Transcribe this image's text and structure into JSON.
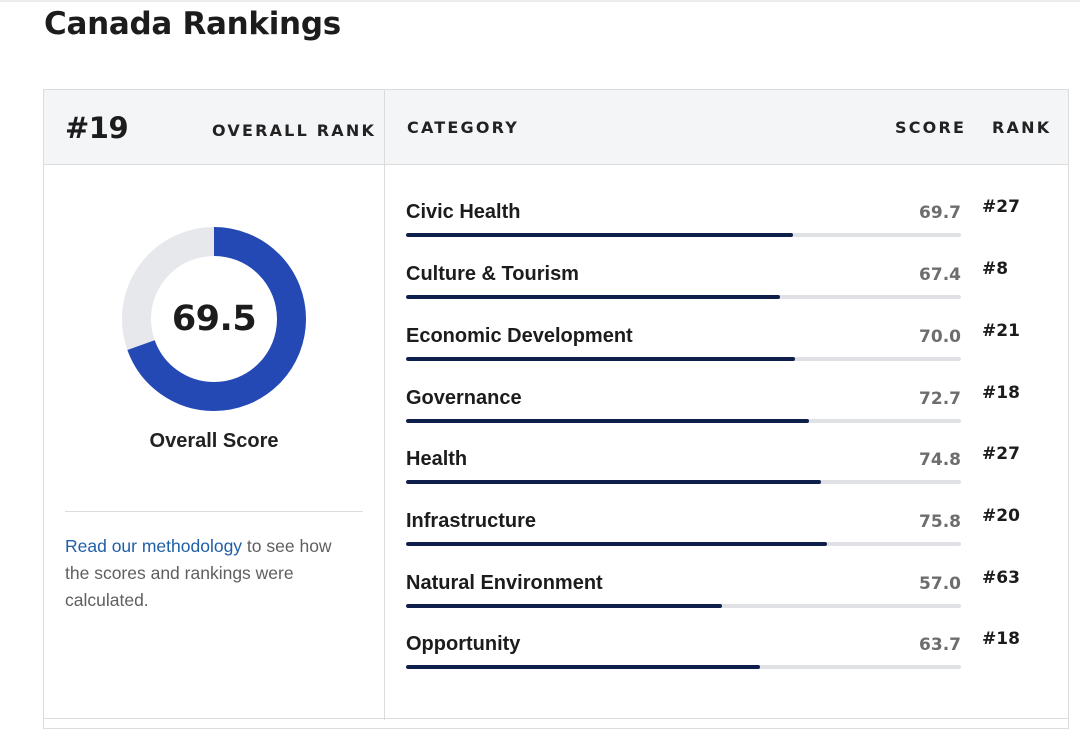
{
  "page": {
    "title": "Canada Rankings"
  },
  "overall": {
    "rank": "#19",
    "rank_label": "OVERALL RANK",
    "score": "69.5",
    "score_fraction": 0.695,
    "score_label": "Overall Score"
  },
  "table": {
    "headers": {
      "category": "CATEGORY",
      "score": "SCORE",
      "rank": "RANK"
    },
    "rows": [
      {
        "label": "Civic Health",
        "score": "69.7",
        "score_value": 69.7,
        "rank": "#27"
      },
      {
        "label": "Culture & Tourism",
        "score": "67.4",
        "score_value": 67.4,
        "rank": "#8"
      },
      {
        "label": "Economic Development",
        "score": "70.0",
        "score_value": 70.0,
        "rank": "#21"
      },
      {
        "label": "Governance",
        "score": "72.7",
        "score_value": 72.7,
        "rank": "#18"
      },
      {
        "label": "Health",
        "score": "74.8",
        "score_value": 74.8,
        "rank": "#27"
      },
      {
        "label": "Infrastructure",
        "score": "75.8",
        "score_value": 75.8,
        "rank": "#20"
      },
      {
        "label": "Natural Environment",
        "score": "57.0",
        "score_value": 57.0,
        "rank": "#63"
      },
      {
        "label": "Opportunity",
        "score": "63.7",
        "score_value": 63.7,
        "rank": "#18"
      }
    ]
  },
  "methodology": {
    "link_text": "Read our methodology",
    "trailing_text": " to see how the scores and rankings were calculated."
  },
  "colors": {
    "donut_fill": "#2449b5",
    "donut_track": "#e6e8ec",
    "bar_fill": "#0f1f4b",
    "bar_track": "#dfe1e4",
    "link": "#1f5fa8"
  }
}
